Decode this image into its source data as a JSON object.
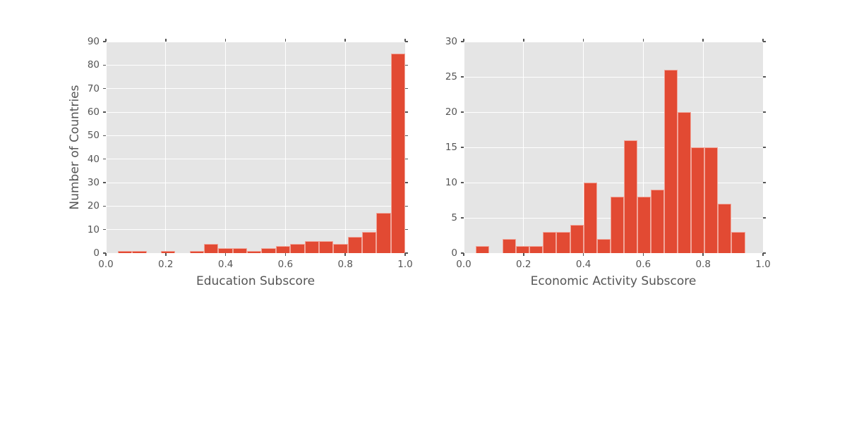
{
  "figure": {
    "background": "#ffffff",
    "title": ""
  },
  "colors": {
    "bar_fill": "#E24A33",
    "bar_edge": "rgba(255,255,255,0.5)",
    "panel_background": "#E5E5E5",
    "gridline": "#ffffff",
    "tick_mark": "#555555",
    "text": "#555555"
  },
  "chart_data": [
    {
      "type": "bar",
      "subtype": "histogram",
      "title": "",
      "xlabel": "Education Subscore",
      "ylabel": "Number of Countries",
      "bin_start": 0.04,
      "bin_width": 0.048,
      "values": [
        1,
        1,
        0,
        1,
        0,
        1,
        4,
        2,
        2,
        1,
        2,
        3,
        4,
        5,
        5,
        4,
        7,
        9,
        17,
        85
      ],
      "xlim": [
        0.0,
        1.0
      ],
      "ylim": [
        0,
        90
      ],
      "xticks": [
        0.0,
        0.2,
        0.4,
        0.6,
        0.8,
        1.0
      ],
      "xtick_labels": [
        "0.0",
        "0.2",
        "0.4",
        "0.6",
        "0.8",
        "1.0"
      ],
      "yticks": [
        0,
        10,
        20,
        30,
        40,
        50,
        60,
        70,
        80,
        90
      ],
      "grid": true,
      "legend": false
    },
    {
      "type": "bar",
      "subtype": "histogram",
      "title": "",
      "xlabel": "Economic Activity Subscore",
      "ylabel": "",
      "bin_start": 0.04,
      "bin_width": 0.045,
      "values": [
        1,
        0,
        2,
        1,
        1,
        3,
        3,
        4,
        10,
        2,
        8,
        16,
        8,
        9,
        26,
        20,
        15,
        15,
        7,
        3
      ],
      "xlim": [
        0.0,
        1.0
      ],
      "ylim": [
        0,
        30
      ],
      "xticks": [
        0.0,
        0.2,
        0.4,
        0.6,
        0.8,
        1.0
      ],
      "xtick_labels": [
        "0.0",
        "0.2",
        "0.4",
        "0.6",
        "0.8",
        "1.0"
      ],
      "yticks": [
        0,
        5,
        10,
        15,
        20,
        25,
        30
      ],
      "grid": true,
      "legend": false
    }
  ]
}
